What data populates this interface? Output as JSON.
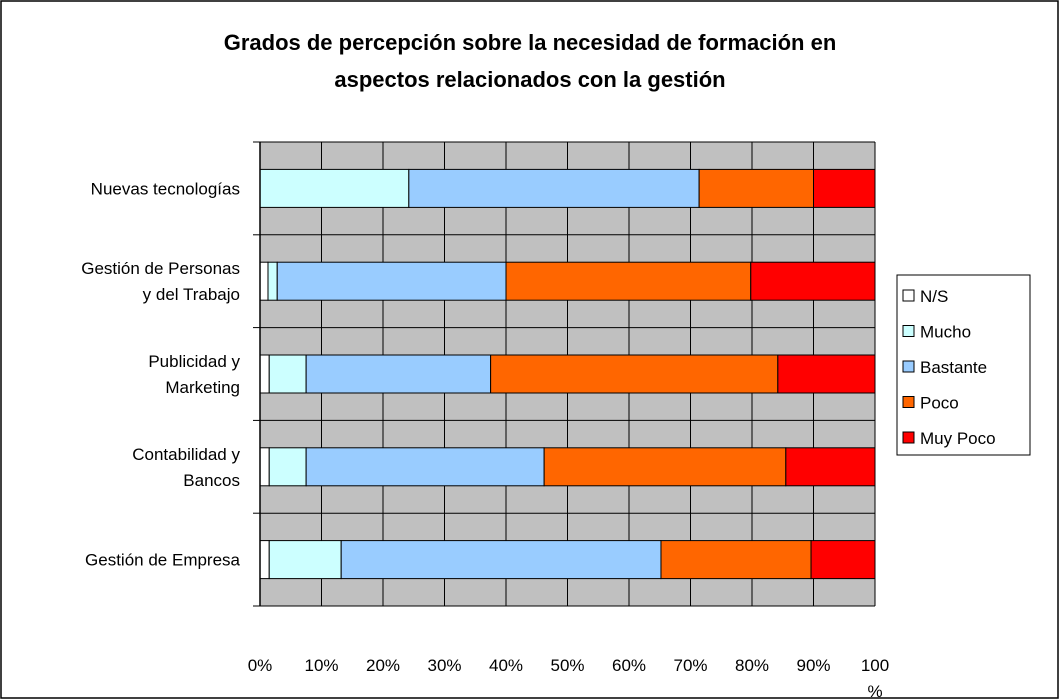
{
  "chart_data": {
    "type": "bar",
    "orientation": "horizontal",
    "stacked": "percent",
    "title": "Grados de percepción sobre la necesidad de formación en\naspectos relacionados con la gestión",
    "categories": [
      "Nuevas tecnologías",
      "Gestión de Personas\ny del Trabajo",
      "Publicidad y\nMarketing",
      "Contabilidad y\nBancos",
      "Gestión de Empresa"
    ],
    "series": [
      {
        "name": "N/S",
        "color": "#ffffff",
        "values": [
          0,
          1.3,
          1.5,
          1.5,
          1.5
        ]
      },
      {
        "name": "Mucho",
        "color": "#ccffff",
        "values": [
          24.2,
          1.5,
          6.0,
          6.0,
          11.7
        ]
      },
      {
        "name": "Bastante",
        "color": "#99ccff",
        "values": [
          47.2,
          37.2,
          30.0,
          38.7,
          52.0
        ]
      },
      {
        "name": "Poco",
        "color": "#ff6600",
        "values": [
          18.6,
          39.8,
          46.7,
          39.3,
          24.4
        ]
      },
      {
        "name": "Muy Poco",
        "color": "#ff0000",
        "values": [
          10.0,
          20.2,
          15.8,
          14.5,
          10.4
        ]
      }
    ],
    "xlim": [
      0,
      100
    ],
    "xticks": [
      {
        "value": 0,
        "label": "0%"
      },
      {
        "value": 10,
        "label": "10%"
      },
      {
        "value": 20,
        "label": "20%"
      },
      {
        "value": 30,
        "label": "30%"
      },
      {
        "value": 40,
        "label": "40%"
      },
      {
        "value": 50,
        "label": "50%"
      },
      {
        "value": 60,
        "label": "60%"
      },
      {
        "value": 70,
        "label": "70%"
      },
      {
        "value": 80,
        "label": "80%"
      },
      {
        "value": 90,
        "label": "90%"
      },
      {
        "value": 100,
        "label": "100\n%"
      }
    ],
    "grid": true,
    "legend": "right"
  }
}
